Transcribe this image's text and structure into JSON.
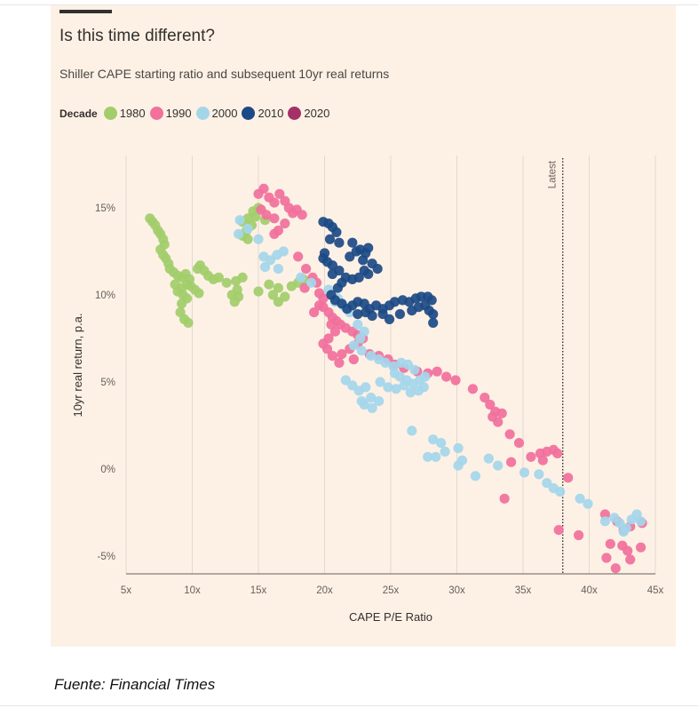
{
  "title": "Is this time different?",
  "subtitle": "Shiller CAPE starting ratio and subsequent 10yr real returns",
  "legend": {
    "title": "Decade",
    "items": [
      {
        "label": "1980",
        "color": "#a3cd6b"
      },
      {
        "label": "1990",
        "color": "#f1709c"
      },
      {
        "label": "2000",
        "color": "#a4d6ea"
      },
      {
        "label": "2010",
        "color": "#1c4a86"
      },
      {
        "label": "2020",
        "color": "#a53068"
      }
    ]
  },
  "caption": "Fuente: Financial Times",
  "chart_data": {
    "type": "scatter",
    "title": "Is this time different?",
    "subtitle": "Shiller CAPE starting ratio and subsequent 10yr real returns",
    "xlabel": "CAPE P/E Ratio",
    "ylabel": "10yr real return, p.a.",
    "xlim": [
      5,
      45
    ],
    "ylim": [
      -6,
      17
    ],
    "x_ticks": [
      5,
      10,
      15,
      20,
      25,
      30,
      35,
      40,
      45
    ],
    "x_tick_labels": [
      "5x",
      "10x",
      "15x",
      "20x",
      "25x",
      "30x",
      "35x",
      "40x",
      "45x"
    ],
    "y_ticks": [
      -5,
      0,
      5,
      10,
      15
    ],
    "y_tick_labels": [
      "-5%",
      "0%",
      "5%",
      "10%",
      "15%"
    ],
    "grid": "vertical",
    "reference_line": {
      "x": 38,
      "label": "Latest"
    },
    "series": [
      {
        "name": "1980",
        "color": "#a3cd6b",
        "points": [
          [
            6.8,
            14.4
          ],
          [
            7.0,
            14.2
          ],
          [
            7.2,
            14.0
          ],
          [
            7.4,
            13.7
          ],
          [
            7.6,
            13.5
          ],
          [
            7.8,
            13.2
          ],
          [
            7.9,
            12.9
          ],
          [
            7.6,
            12.6
          ],
          [
            7.8,
            12.3
          ],
          [
            8.0,
            12.1
          ],
          [
            8.2,
            11.8
          ],
          [
            8.3,
            11.5
          ],
          [
            8.6,
            11.3
          ],
          [
            8.9,
            11.1
          ],
          [
            9.2,
            11.0
          ],
          [
            9.5,
            11.2
          ],
          [
            9.8,
            10.9
          ],
          [
            9.6,
            10.6
          ],
          [
            9.2,
            10.4
          ],
          [
            8.9,
            10.2
          ],
          [
            9.3,
            10.0
          ],
          [
            9.6,
            9.8
          ],
          [
            9.2,
            9.5
          ],
          [
            9.1,
            9.0
          ],
          [
            9.4,
            8.6
          ],
          [
            9.7,
            8.4
          ],
          [
            8.7,
            10.6
          ],
          [
            9.9,
            10.5
          ],
          [
            10.2,
            10.3
          ],
          [
            10.5,
            10.1
          ],
          [
            10.4,
            11.5
          ],
          [
            10.6,
            11.7
          ],
          [
            10.9,
            11.4
          ],
          [
            11.2,
            11.1
          ],
          [
            11.6,
            10.9
          ],
          [
            12.0,
            11.0
          ],
          [
            12.6,
            10.7
          ],
          [
            13.3,
            10.8
          ],
          [
            13.8,
            11.0
          ],
          [
            13.4,
            10.3
          ],
          [
            13.0,
            10.0
          ],
          [
            13.5,
            9.9
          ],
          [
            13.2,
            9.6
          ],
          [
            15.0,
            10.2
          ],
          [
            15.8,
            10.6
          ],
          [
            16.5,
            10.4
          ],
          [
            16.1,
            10.0
          ],
          [
            16.5,
            9.6
          ],
          [
            17.0,
            9.9
          ],
          [
            17.5,
            10.5
          ],
          [
            18.0,
            10.7
          ],
          [
            18.4,
            10.9
          ],
          [
            13.8,
            14.2
          ],
          [
            14.2,
            14.4
          ],
          [
            14.6,
            14.8
          ],
          [
            15.0,
            15.0
          ],
          [
            14.8,
            14.5
          ],
          [
            14.5,
            14.0
          ],
          [
            14.1,
            13.7
          ],
          [
            13.8,
            13.4
          ],
          [
            15.5,
            14.3
          ],
          [
            14.2,
            13.2
          ]
        ]
      },
      {
        "name": "1990",
        "color": "#f1709c",
        "points": [
          [
            15.0,
            15.8
          ],
          [
            15.4,
            16.1
          ],
          [
            15.8,
            15.6
          ],
          [
            16.2,
            15.3
          ],
          [
            16.6,
            15.8
          ],
          [
            17.0,
            15.4
          ],
          [
            17.3,
            15.0
          ],
          [
            17.6,
            14.7
          ],
          [
            16.2,
            14.4
          ],
          [
            15.6,
            14.6
          ],
          [
            15.2,
            14.9
          ],
          [
            17.9,
            14.9
          ],
          [
            18.3,
            14.6
          ],
          [
            17.0,
            14.1
          ],
          [
            16.5,
            13.7
          ],
          [
            16.2,
            13.5
          ],
          [
            18.0,
            12.2
          ],
          [
            18.6,
            11.5
          ],
          [
            19.1,
            11.0
          ],
          [
            19.4,
            10.7
          ],
          [
            18.5,
            10.4
          ],
          [
            19.6,
            10.1
          ],
          [
            19.9,
            9.8
          ],
          [
            19.6,
            9.4
          ],
          [
            19.2,
            9.0
          ],
          [
            19.9,
            9.3
          ],
          [
            20.3,
            9.0
          ],
          [
            20.6,
            8.7
          ],
          [
            20.9,
            8.5
          ],
          [
            21.2,
            8.3
          ],
          [
            21.6,
            8.1
          ],
          [
            22.1,
            7.9
          ],
          [
            22.5,
            7.7
          ],
          [
            22.9,
            7.5
          ],
          [
            20.5,
            8.3
          ],
          [
            20.8,
            7.9
          ],
          [
            20.3,
            7.5
          ],
          [
            19.9,
            7.2
          ],
          [
            20.2,
            6.9
          ],
          [
            20.6,
            6.5
          ],
          [
            21.3,
            6.6
          ],
          [
            21.9,
            6.9
          ],
          [
            22.5,
            7.2
          ],
          [
            21.1,
            6.1
          ],
          [
            22.2,
            6.3
          ],
          [
            23.4,
            6.6
          ],
          [
            24.1,
            6.5
          ],
          [
            24.8,
            6.3
          ],
          [
            25.3,
            6.0
          ],
          [
            26.0,
            5.8
          ],
          [
            27.0,
            5.6
          ],
          [
            27.8,
            5.5
          ],
          [
            28.5,
            5.6
          ],
          [
            29.2,
            5.3
          ],
          [
            29.9,
            5.1
          ],
          [
            31.2,
            4.6
          ],
          [
            32.1,
            4.1
          ],
          [
            32.5,
            3.7
          ],
          [
            32.9,
            3.3
          ],
          [
            33.4,
            3.2
          ],
          [
            32.7,
            3.0
          ],
          [
            33.1,
            2.7
          ],
          [
            34.0,
            2.0
          ],
          [
            34.7,
            1.5
          ],
          [
            35.6,
            0.7
          ],
          [
            36.3,
            0.9
          ],
          [
            36.8,
            1.0
          ],
          [
            37.3,
            1.1
          ],
          [
            37.6,
            0.9
          ],
          [
            36.5,
            0.5
          ],
          [
            34.1,
            0.4
          ],
          [
            33.6,
            -1.7
          ],
          [
            38.4,
            -0.5
          ],
          [
            37.7,
            -3.5
          ],
          [
            39.2,
            -3.8
          ],
          [
            41.2,
            -2.6
          ],
          [
            42.1,
            -3.0
          ],
          [
            42.6,
            -3.5
          ],
          [
            43.1,
            -3.3
          ],
          [
            44.0,
            -3.1
          ],
          [
            41.6,
            -4.3
          ],
          [
            42.5,
            -4.4
          ],
          [
            41.3,
            -5.1
          ],
          [
            42.9,
            -4.7
          ],
          [
            43.1,
            -5.2
          ],
          [
            42.0,
            -5.7
          ],
          [
            43.9,
            -4.5
          ]
        ]
      },
      {
        "name": "2000",
        "color": "#a4d6ea",
        "points": [
          [
            13.6,
            14.3
          ],
          [
            14.2,
            13.8
          ],
          [
            13.5,
            13.5
          ],
          [
            15.0,
            13.2
          ],
          [
            15.4,
            12.2
          ],
          [
            15.9,
            12.0
          ],
          [
            16.4,
            12.3
          ],
          [
            16.9,
            12.5
          ],
          [
            15.5,
            11.6
          ],
          [
            16.5,
            11.5
          ],
          [
            18.2,
            11.0
          ],
          [
            19.0,
            10.7
          ],
          [
            20.3,
            10.3
          ],
          [
            21.0,
            9.8
          ],
          [
            20.8,
            9.6
          ],
          [
            21.4,
            9.4
          ],
          [
            21.9,
            9.0
          ],
          [
            22.5,
            8.3
          ],
          [
            23.0,
            7.9
          ],
          [
            22.7,
            7.5
          ],
          [
            22.2,
            7.1
          ],
          [
            22.8,
            6.8
          ],
          [
            23.5,
            6.5
          ],
          [
            24.1,
            6.3
          ],
          [
            24.6,
            6.1
          ],
          [
            25.2,
            5.9
          ],
          [
            25.8,
            6.1
          ],
          [
            26.3,
            6.0
          ],
          [
            26.8,
            5.7
          ],
          [
            25.3,
            5.5
          ],
          [
            25.7,
            5.3
          ],
          [
            26.2,
            5.1
          ],
          [
            26.7,
            4.9
          ],
          [
            27.2,
            5.1
          ],
          [
            27.6,
            5.3
          ],
          [
            24.2,
            5.0
          ],
          [
            24.8,
            4.7
          ],
          [
            25.4,
            4.6
          ],
          [
            26.0,
            4.8
          ],
          [
            26.5,
            4.4
          ],
          [
            27.1,
            4.5
          ],
          [
            27.5,
            4.7
          ],
          [
            21.6,
            5.1
          ],
          [
            22.1,
            4.8
          ],
          [
            22.6,
            4.5
          ],
          [
            23.1,
            4.7
          ],
          [
            23.5,
            4.1
          ],
          [
            23.0,
            3.7
          ],
          [
            24.1,
            3.9
          ],
          [
            23.6,
            3.5
          ],
          [
            22.8,
            3.9
          ],
          [
            26.6,
            2.2
          ],
          [
            28.2,
            1.7
          ],
          [
            28.8,
            1.5
          ],
          [
            29.1,
            1.0
          ],
          [
            28.4,
            0.7
          ],
          [
            27.8,
            0.7
          ],
          [
            30.1,
            1.2
          ],
          [
            30.4,
            0.5
          ],
          [
            30.1,
            0.2
          ],
          [
            31.4,
            -0.4
          ],
          [
            32.4,
            0.6
          ],
          [
            33.1,
            0.2
          ],
          [
            35.1,
            -0.2
          ],
          [
            36.2,
            -0.3
          ],
          [
            36.8,
            -0.8
          ],
          [
            37.3,
            -1.1
          ],
          [
            37.8,
            -1.3
          ],
          [
            39.3,
            -1.7
          ],
          [
            39.9,
            -2.0
          ],
          [
            41.2,
            -3.0
          ],
          [
            41.9,
            -2.8
          ],
          [
            42.3,
            -3.1
          ],
          [
            42.8,
            -3.4
          ],
          [
            43.2,
            -2.9
          ],
          [
            43.6,
            -2.6
          ],
          [
            43.9,
            -3.0
          ],
          [
            42.6,
            -3.6
          ]
        ]
      },
      {
        "name": "2010",
        "color": "#1c4a86",
        "points": [
          [
            19.9,
            14.2
          ],
          [
            20.3,
            14.1
          ],
          [
            20.6,
            13.9
          ],
          [
            20.9,
            13.6
          ],
          [
            20.4,
            13.2
          ],
          [
            21.1,
            13.0
          ],
          [
            22.1,
            13.0
          ],
          [
            22.7,
            12.6
          ],
          [
            23.1,
            12.4
          ],
          [
            23.3,
            12.7
          ],
          [
            22.9,
            12.0
          ],
          [
            23.6,
            11.8
          ],
          [
            24.0,
            11.5
          ],
          [
            23.3,
            11.2
          ],
          [
            22.6,
            11.0
          ],
          [
            22.1,
            10.9
          ],
          [
            21.6,
            11.0
          ],
          [
            21.1,
            11.4
          ],
          [
            20.6,
            11.7
          ],
          [
            20.2,
            11.9
          ],
          [
            19.9,
            12.1
          ],
          [
            20.0,
            12.4
          ],
          [
            20.6,
            11.2
          ],
          [
            21.3,
            10.7
          ],
          [
            21.0,
            10.4
          ],
          [
            20.5,
            10.0
          ],
          [
            20.8,
            9.7
          ],
          [
            21.3,
            9.5
          ],
          [
            21.7,
            9.2
          ],
          [
            22.1,
            9.4
          ],
          [
            22.5,
            9.6
          ],
          [
            23.0,
            9.5
          ],
          [
            23.4,
            9.2
          ],
          [
            23.9,
            9.4
          ],
          [
            24.4,
            9.2
          ],
          [
            24.9,
            9.4
          ],
          [
            25.3,
            9.6
          ],
          [
            25.9,
            9.7
          ],
          [
            26.4,
            9.6
          ],
          [
            26.9,
            9.8
          ],
          [
            27.3,
            9.9
          ],
          [
            27.8,
            9.9
          ],
          [
            28.1,
            9.7
          ],
          [
            27.6,
            9.4
          ],
          [
            27.1,
            9.3
          ],
          [
            26.6,
            9.1
          ],
          [
            27.9,
            9.1
          ],
          [
            28.2,
            8.9
          ],
          [
            28.2,
            8.4
          ],
          [
            25.7,
            8.9
          ],
          [
            24.9,
            8.6
          ],
          [
            24.4,
            8.9
          ],
          [
            23.6,
            8.8
          ],
          [
            23.1,
            9.0
          ],
          [
            22.5,
            8.9
          ],
          [
            21.9,
            12.2
          ],
          [
            22.4,
            12.5
          ],
          [
            23.0,
            11.4
          ]
        ]
      }
    ]
  }
}
